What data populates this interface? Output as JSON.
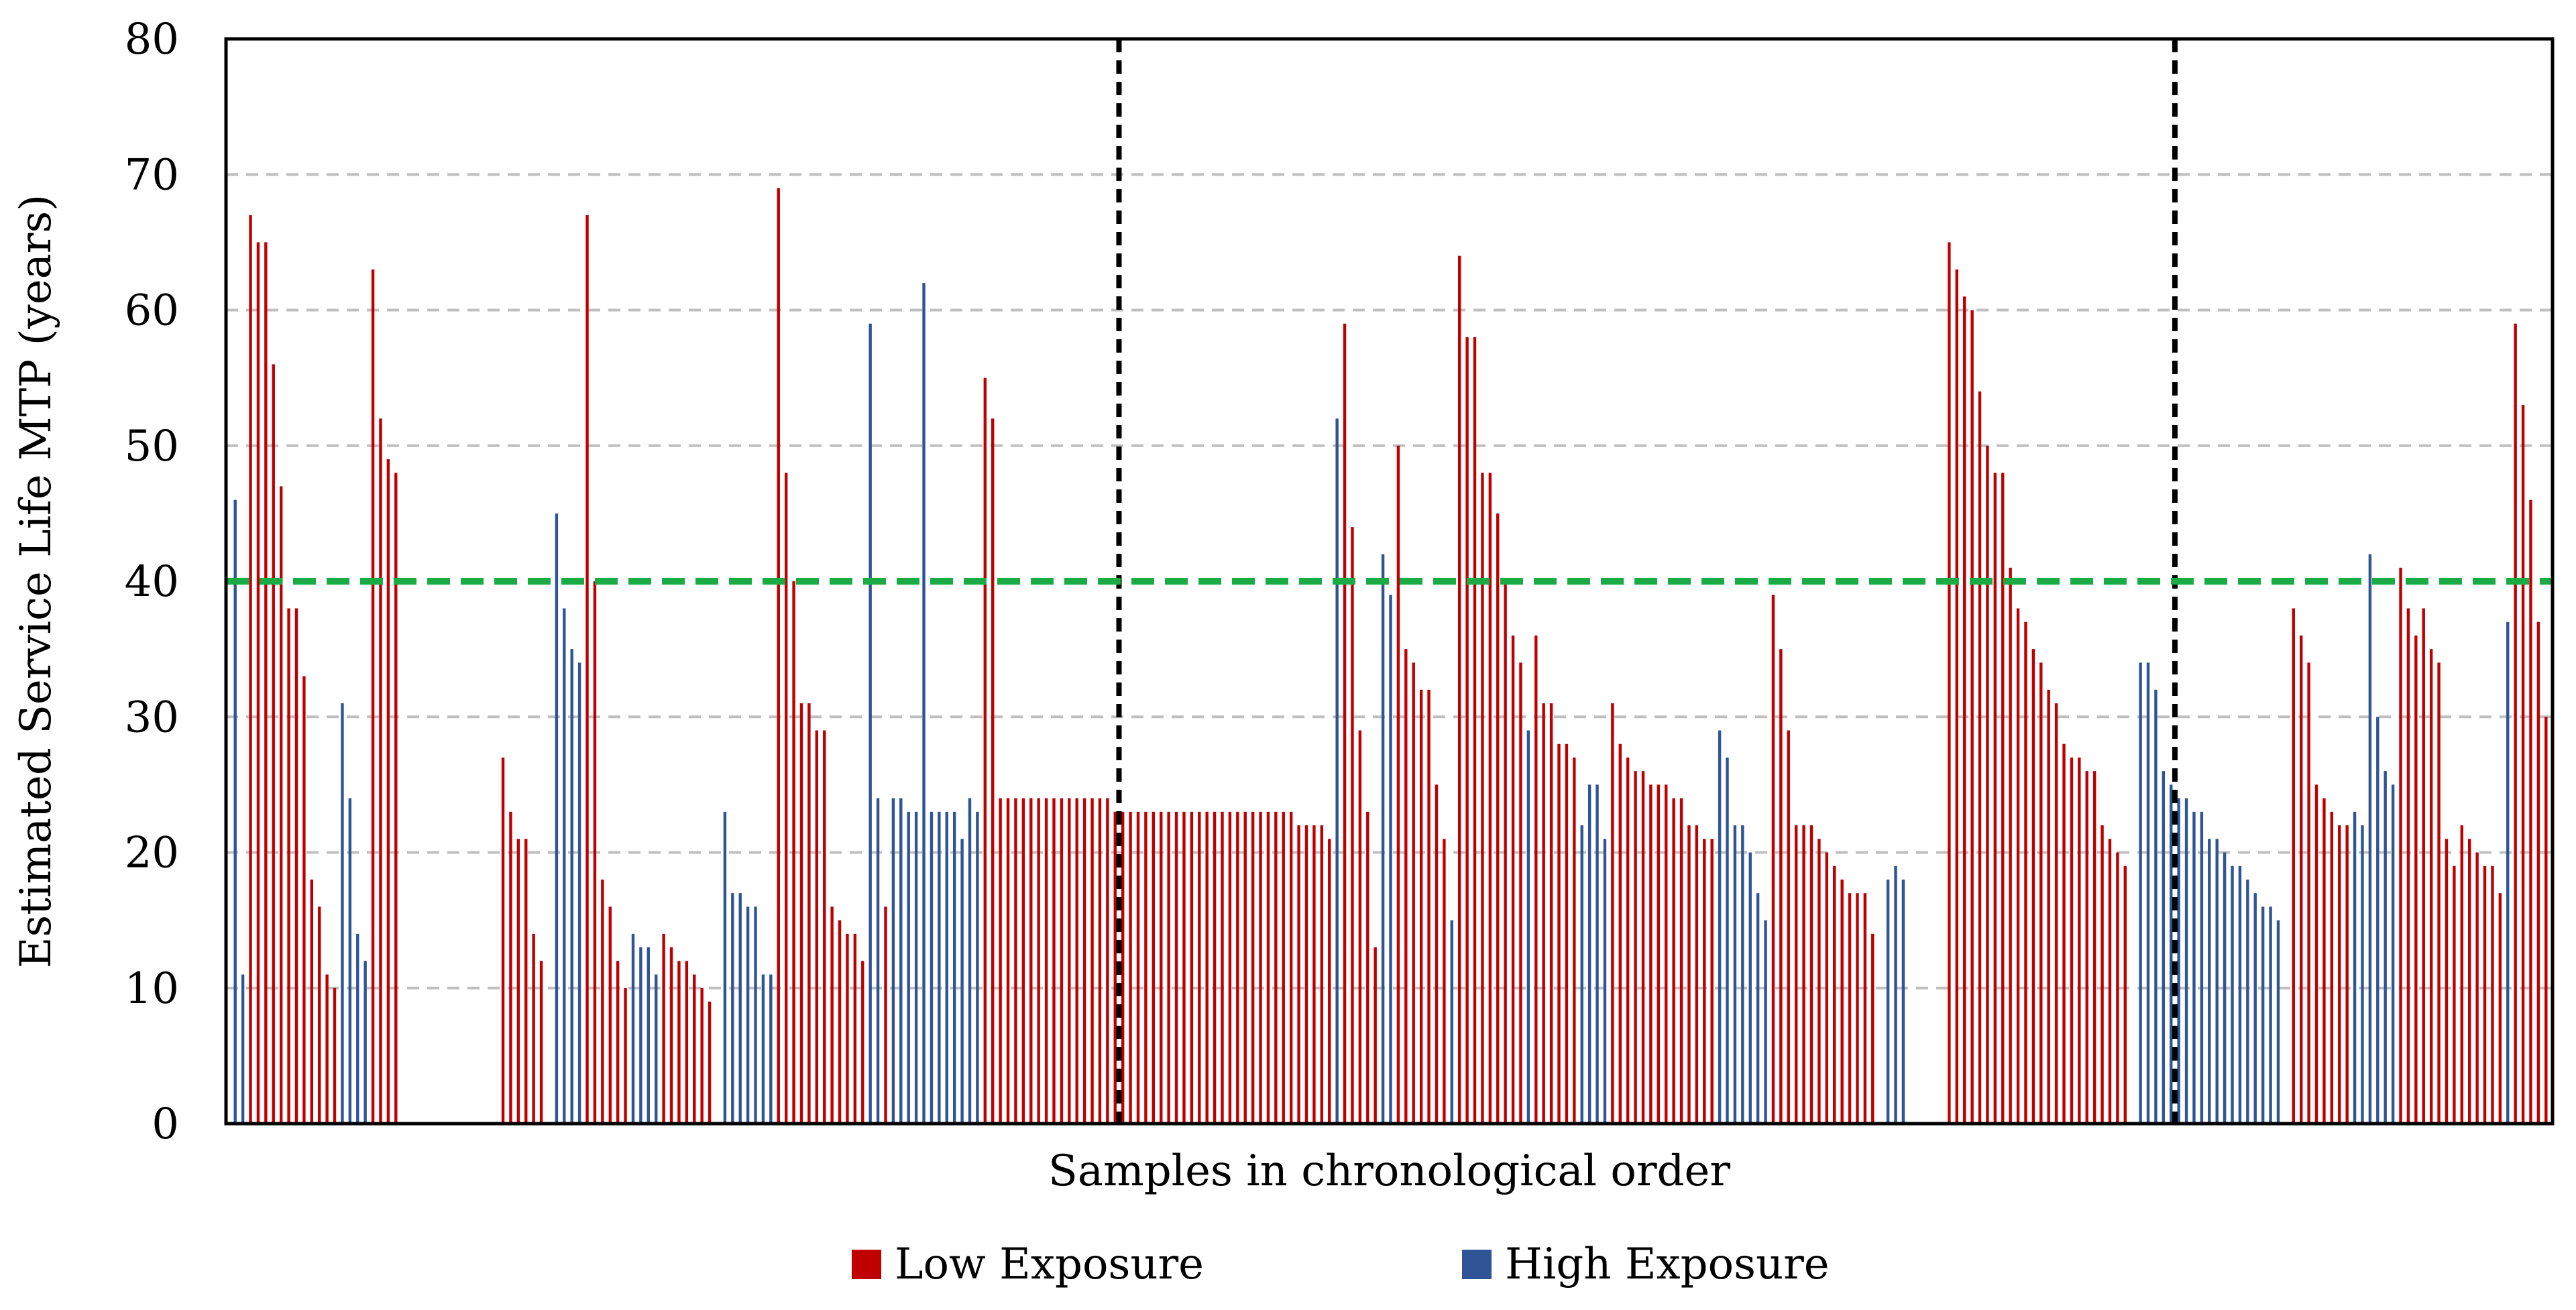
{
  "chart_data": {
    "type": "bar",
    "title": "",
    "xlabel": "Samples in chronological order",
    "ylabel": "Estimated Service Life MTP (years)",
    "ylim": [
      0,
      80
    ],
    "yticks": [
      "0",
      "10",
      "20",
      "30",
      "40",
      "50",
      "60",
      "70",
      "80"
    ],
    "threshold": 40,
    "gridlines": "horizontal dashed at 10,20,30,40,50,60,70",
    "legend_position": "bottom-center",
    "colors": {
      "low": "#c00000",
      "high": "#2f5597",
      "threshold": "#1aab45",
      "divider": "#000000",
      "grid": "#bfbfbf"
    },
    "dividers_after_sample_index": [
      115,
      253
    ],
    "series": [
      {
        "name": "Low Exposure",
        "key": "low"
      },
      {
        "name": "High Exposure",
        "key": "high"
      }
    ],
    "samples": [
      {
        "s": "high",
        "v": 46
      },
      {
        "s": "high",
        "v": 11
      },
      {
        "s": "low",
        "v": 67
      },
      {
        "s": "low",
        "v": 65
      },
      {
        "s": "low",
        "v": 65
      },
      {
        "s": "low",
        "v": 56
      },
      {
        "s": "low",
        "v": 47
      },
      {
        "s": "low",
        "v": 38
      },
      {
        "s": "low",
        "v": 38
      },
      {
        "s": "low",
        "v": 33
      },
      {
        "s": "low",
        "v": 18
      },
      {
        "s": "low",
        "v": 16
      },
      {
        "s": "low",
        "v": 11
      },
      {
        "s": "low",
        "v": 10
      },
      {
        "s": "high",
        "v": 31
      },
      {
        "s": "high",
        "v": 24
      },
      {
        "s": "high",
        "v": 14
      },
      {
        "s": "high",
        "v": 12
      },
      {
        "s": "low",
        "v": 63
      },
      {
        "s": "low",
        "v": 52
      },
      {
        "s": "low",
        "v": 49
      },
      {
        "s": "low",
        "v": 48
      },
      {
        "s": "low",
        "v": 0
      },
      {
        "s": "low",
        "v": 0
      },
      {
        "s": "low",
        "v": 0
      },
      {
        "s": "low",
        "v": 0
      },
      {
        "s": "low",
        "v": 0
      },
      {
        "s": "low",
        "v": 0
      },
      {
        "s": "low",
        "v": 0
      },
      {
        "s": "low",
        "v": 0
      },
      {
        "s": "low",
        "v": 0
      },
      {
        "s": "low",
        "v": 0
      },
      {
        "s": "low",
        "v": 0
      },
      {
        "s": "low",
        "v": 0
      },
      {
        "s": "low",
        "v": 0
      },
      {
        "s": "low",
        "v": 27
      },
      {
        "s": "low",
        "v": 23
      },
      {
        "s": "low",
        "v": 21
      },
      {
        "s": "low",
        "v": 21
      },
      {
        "s": "low",
        "v": 14
      },
      {
        "s": "low",
        "v": 12
      },
      {
        "s": "high",
        "v": 0
      },
      {
        "s": "high",
        "v": 45
      },
      {
        "s": "high",
        "v": 38
      },
      {
        "s": "high",
        "v": 35
      },
      {
        "s": "high",
        "v": 34
      },
      {
        "s": "low",
        "v": 67
      },
      {
        "s": "low",
        "v": 40
      },
      {
        "s": "low",
        "v": 18
      },
      {
        "s": "low",
        "v": 16
      },
      {
        "s": "low",
        "v": 12
      },
      {
        "s": "low",
        "v": 10
      },
      {
        "s": "high",
        "v": 14
      },
      {
        "s": "high",
        "v": 13
      },
      {
        "s": "high",
        "v": 13
      },
      {
        "s": "high",
        "v": 11
      },
      {
        "s": "low",
        "v": 14
      },
      {
        "s": "low",
        "v": 13
      },
      {
        "s": "low",
        "v": 12
      },
      {
        "s": "low",
        "v": 12
      },
      {
        "s": "low",
        "v": 11
      },
      {
        "s": "low",
        "v": 10
      },
      {
        "s": "low",
        "v": 9
      },
      {
        "s": "high",
        "v": 0
      },
      {
        "s": "high",
        "v": 23
      },
      {
        "s": "high",
        "v": 17
      },
      {
        "s": "high",
        "v": 17
      },
      {
        "s": "high",
        "v": 16
      },
      {
        "s": "high",
        "v": 16
      },
      {
        "s": "high",
        "v": 11
      },
      {
        "s": "high",
        "v": 11
      },
      {
        "s": "low",
        "v": 69
      },
      {
        "s": "low",
        "v": 48
      },
      {
        "s": "low",
        "v": 40
      },
      {
        "s": "low",
        "v": 31
      },
      {
        "s": "low",
        "v": 31
      },
      {
        "s": "low",
        "v": 29
      },
      {
        "s": "low",
        "v": 29
      },
      {
        "s": "low",
        "v": 16
      },
      {
        "s": "low",
        "v": 15
      },
      {
        "s": "low",
        "v": 14
      },
      {
        "s": "low",
        "v": 14
      },
      {
        "s": "low",
        "v": 12
      },
      {
        "s": "high",
        "v": 59
      },
      {
        "s": "high",
        "v": 24
      },
      {
        "s": "low",
        "v": 16
      },
      {
        "s": "high",
        "v": 24
      },
      {
        "s": "high",
        "v": 24
      },
      {
        "s": "high",
        "v": 23
      },
      {
        "s": "high",
        "v": 23
      },
      {
        "s": "high",
        "v": 62
      },
      {
        "s": "high",
        "v": 23
      },
      {
        "s": "high",
        "v": 23
      },
      {
        "s": "high",
        "v": 23
      },
      {
        "s": "high",
        "v": 23
      },
      {
        "s": "high",
        "v": 21
      },
      {
        "s": "high",
        "v": 24
      },
      {
        "s": "high",
        "v": 23
      },
      {
        "s": "low",
        "v": 55
      },
      {
        "s": "low",
        "v": 52
      },
      {
        "s": "low",
        "v": 24
      },
      {
        "s": "low",
        "v": 24
      },
      {
        "s": "low",
        "v": 24
      },
      {
        "s": "low",
        "v": 24
      },
      {
        "s": "low",
        "v": 24
      },
      {
        "s": "low",
        "v": 24
      },
      {
        "s": "low",
        "v": 24
      },
      {
        "s": "low",
        "v": 24
      },
      {
        "s": "low",
        "v": 24
      },
      {
        "s": "low",
        "v": 24
      },
      {
        "s": "low",
        "v": 24
      },
      {
        "s": "low",
        "v": 24
      },
      {
        "s": "low",
        "v": 24
      },
      {
        "s": "low",
        "v": 24
      },
      {
        "s": "low",
        "v": 24
      },
      {
        "s": "low",
        "v": 23
      },
      {
        "s": "low",
        "v": 23
      },
      {
        "s": "low",
        "v": 23
      },
      {
        "s": "low",
        "v": 23
      },
      {
        "s": "low",
        "v": 23
      },
      {
        "s": "low",
        "v": 23
      },
      {
        "s": "low",
        "v": 23
      },
      {
        "s": "low",
        "v": 23
      },
      {
        "s": "low",
        "v": 23
      },
      {
        "s": "low",
        "v": 23
      },
      {
        "s": "low",
        "v": 23
      },
      {
        "s": "low",
        "v": 23
      },
      {
        "s": "low",
        "v": 23
      },
      {
        "s": "low",
        "v": 23
      },
      {
        "s": "low",
        "v": 23
      },
      {
        "s": "low",
        "v": 23
      },
      {
        "s": "low",
        "v": 23
      },
      {
        "s": "low",
        "v": 23
      },
      {
        "s": "low",
        "v": 23
      },
      {
        "s": "low",
        "v": 23
      },
      {
        "s": "low",
        "v": 23
      },
      {
        "s": "low",
        "v": 23
      },
      {
        "s": "low",
        "v": 23
      },
      {
        "s": "low",
        "v": 23
      },
      {
        "s": "low",
        "v": 22
      },
      {
        "s": "low",
        "v": 22
      },
      {
        "s": "low",
        "v": 22
      },
      {
        "s": "low",
        "v": 22
      },
      {
        "s": "low",
        "v": 21
      },
      {
        "s": "high",
        "v": 52
      },
      {
        "s": "low",
        "v": 59
      },
      {
        "s": "low",
        "v": 44
      },
      {
        "s": "low",
        "v": 29
      },
      {
        "s": "low",
        "v": 23
      },
      {
        "s": "low",
        "v": 13
      },
      {
        "s": "high",
        "v": 42
      },
      {
        "s": "high",
        "v": 39
      },
      {
        "s": "low",
        "v": 50
      },
      {
        "s": "low",
        "v": 35
      },
      {
        "s": "low",
        "v": 34
      },
      {
        "s": "low",
        "v": 32
      },
      {
        "s": "low",
        "v": 32
      },
      {
        "s": "low",
        "v": 25
      },
      {
        "s": "low",
        "v": 21
      },
      {
        "s": "high",
        "v": 15
      },
      {
        "s": "low",
        "v": 64
      },
      {
        "s": "low",
        "v": 58
      },
      {
        "s": "low",
        "v": 58
      },
      {
        "s": "low",
        "v": 48
      },
      {
        "s": "low",
        "v": 48
      },
      {
        "s": "low",
        "v": 45
      },
      {
        "s": "low",
        "v": 40
      },
      {
        "s": "low",
        "v": 36
      },
      {
        "s": "low",
        "v": 34
      },
      {
        "s": "high",
        "v": 29
      },
      {
        "s": "low",
        "v": 36
      },
      {
        "s": "low",
        "v": 31
      },
      {
        "s": "low",
        "v": 31
      },
      {
        "s": "low",
        "v": 28
      },
      {
        "s": "low",
        "v": 28
      },
      {
        "s": "low",
        "v": 27
      },
      {
        "s": "high",
        "v": 22
      },
      {
        "s": "high",
        "v": 25
      },
      {
        "s": "high",
        "v": 25
      },
      {
        "s": "high",
        "v": 21
      },
      {
        "s": "low",
        "v": 31
      },
      {
        "s": "low",
        "v": 28
      },
      {
        "s": "low",
        "v": 27
      },
      {
        "s": "low",
        "v": 26
      },
      {
        "s": "low",
        "v": 26
      },
      {
        "s": "low",
        "v": 25
      },
      {
        "s": "low",
        "v": 25
      },
      {
        "s": "low",
        "v": 25
      },
      {
        "s": "low",
        "v": 24
      },
      {
        "s": "low",
        "v": 24
      },
      {
        "s": "low",
        "v": 22
      },
      {
        "s": "low",
        "v": 22
      },
      {
        "s": "low",
        "v": 21
      },
      {
        "s": "low",
        "v": 21
      },
      {
        "s": "high",
        "v": 29
      },
      {
        "s": "high",
        "v": 27
      },
      {
        "s": "high",
        "v": 22
      },
      {
        "s": "high",
        "v": 22
      },
      {
        "s": "high",
        "v": 20
      },
      {
        "s": "high",
        "v": 17
      },
      {
        "s": "high",
        "v": 15
      },
      {
        "s": "low",
        "v": 39
      },
      {
        "s": "low",
        "v": 35
      },
      {
        "s": "low",
        "v": 29
      },
      {
        "s": "low",
        "v": 22
      },
      {
        "s": "low",
        "v": 22
      },
      {
        "s": "low",
        "v": 22
      },
      {
        "s": "low",
        "v": 21
      },
      {
        "s": "low",
        "v": 20
      },
      {
        "s": "low",
        "v": 19
      },
      {
        "s": "low",
        "v": 18
      },
      {
        "s": "low",
        "v": 17
      },
      {
        "s": "low",
        "v": 17
      },
      {
        "s": "low",
        "v": 17
      },
      {
        "s": "low",
        "v": 14
      },
      {
        "s": "high",
        "v": 0
      },
      {
        "s": "high",
        "v": 18
      },
      {
        "s": "high",
        "v": 19
      },
      {
        "s": "high",
        "v": 18
      },
      {
        "s": "low",
        "v": 0
      },
      {
        "s": "low",
        "v": 0
      },
      {
        "s": "low",
        "v": 0
      },
      {
        "s": "low",
        "v": 0
      },
      {
        "s": "low",
        "v": 0
      },
      {
        "s": "low",
        "v": 65
      },
      {
        "s": "low",
        "v": 63
      },
      {
        "s": "low",
        "v": 61
      },
      {
        "s": "low",
        "v": 60
      },
      {
        "s": "low",
        "v": 54
      },
      {
        "s": "low",
        "v": 50
      },
      {
        "s": "low",
        "v": 48
      },
      {
        "s": "low",
        "v": 48
      },
      {
        "s": "low",
        "v": 41
      },
      {
        "s": "low",
        "v": 38
      },
      {
        "s": "low",
        "v": 37
      },
      {
        "s": "low",
        "v": 35
      },
      {
        "s": "low",
        "v": 34
      },
      {
        "s": "low",
        "v": 32
      },
      {
        "s": "low",
        "v": 31
      },
      {
        "s": "low",
        "v": 28
      },
      {
        "s": "low",
        "v": 27
      },
      {
        "s": "low",
        "v": 27
      },
      {
        "s": "low",
        "v": 26
      },
      {
        "s": "low",
        "v": 26
      },
      {
        "s": "low",
        "v": 22
      },
      {
        "s": "low",
        "v": 21
      },
      {
        "s": "low",
        "v": 20
      },
      {
        "s": "low",
        "v": 19
      },
      {
        "s": "high",
        "v": 0
      },
      {
        "s": "high",
        "v": 34
      },
      {
        "s": "high",
        "v": 34
      },
      {
        "s": "high",
        "v": 32
      },
      {
        "s": "high",
        "v": 26
      },
      {
        "s": "high",
        "v": 25
      },
      {
        "s": "high",
        "v": 24
      },
      {
        "s": "high",
        "v": 24
      },
      {
        "s": "high",
        "v": 23
      },
      {
        "s": "high",
        "v": 23
      },
      {
        "s": "high",
        "v": 21
      },
      {
        "s": "high",
        "v": 21
      },
      {
        "s": "high",
        "v": 20
      },
      {
        "s": "high",
        "v": 19
      },
      {
        "s": "high",
        "v": 19
      },
      {
        "s": "high",
        "v": 18
      },
      {
        "s": "high",
        "v": 17
      },
      {
        "s": "high",
        "v": 16
      },
      {
        "s": "high",
        "v": 16
      },
      {
        "s": "high",
        "v": 15
      },
      {
        "s": "low",
        "v": 0
      },
      {
        "s": "low",
        "v": 38
      },
      {
        "s": "low",
        "v": 36
      },
      {
        "s": "low",
        "v": 34
      },
      {
        "s": "low",
        "v": 25
      },
      {
        "s": "low",
        "v": 24
      },
      {
        "s": "low",
        "v": 23
      },
      {
        "s": "low",
        "v": 22
      },
      {
        "s": "low",
        "v": 22
      },
      {
        "s": "high",
        "v": 23
      },
      {
        "s": "high",
        "v": 22
      },
      {
        "s": "high",
        "v": 42
      },
      {
        "s": "high",
        "v": 30
      },
      {
        "s": "high",
        "v": 26
      },
      {
        "s": "high",
        "v": 25
      },
      {
        "s": "low",
        "v": 41
      },
      {
        "s": "low",
        "v": 38
      },
      {
        "s": "low",
        "v": 36
      },
      {
        "s": "low",
        "v": 38
      },
      {
        "s": "low",
        "v": 35
      },
      {
        "s": "low",
        "v": 34
      },
      {
        "s": "low",
        "v": 21
      },
      {
        "s": "low",
        "v": 19
      },
      {
        "s": "low",
        "v": 22
      },
      {
        "s": "low",
        "v": 21
      },
      {
        "s": "low",
        "v": 20
      },
      {
        "s": "low",
        "v": 19
      },
      {
        "s": "low",
        "v": 19
      },
      {
        "s": "low",
        "v": 17
      },
      {
        "s": "high",
        "v": 37
      },
      {
        "s": "low",
        "v": 59
      },
      {
        "s": "low",
        "v": 53
      },
      {
        "s": "low",
        "v": 46
      },
      {
        "s": "low",
        "v": 37
      },
      {
        "s": "low",
        "v": 30
      }
    ]
  }
}
